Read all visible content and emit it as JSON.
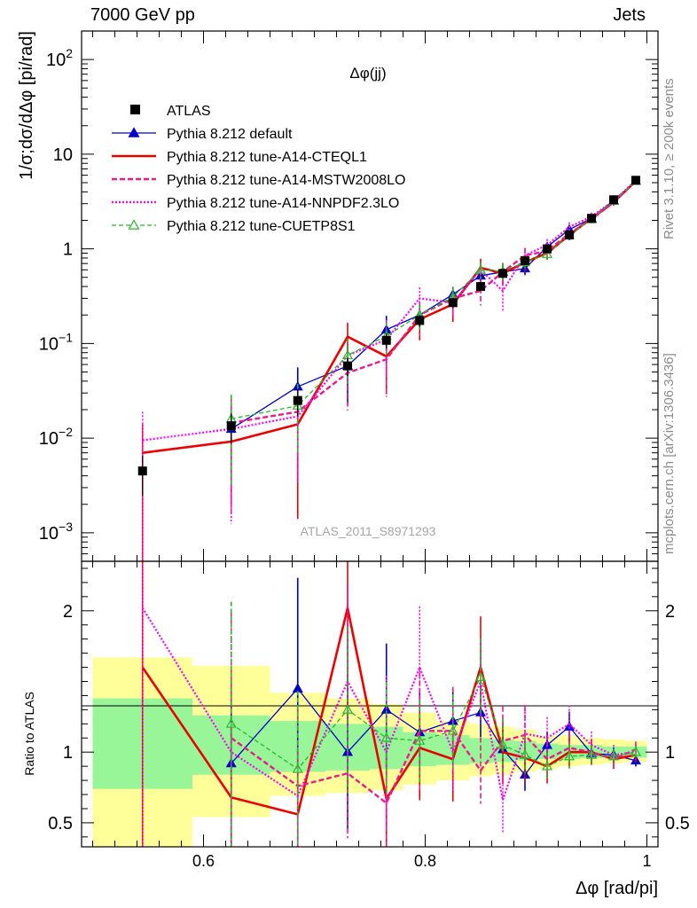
{
  "header": {
    "left": "7000 GeV pp",
    "right": "Jets"
  },
  "side_text": {
    "top": "Rivet 3.1.10, ≥ 200k events",
    "bottom": "mcplots.cern.ch [arXiv:1306.3436]"
  },
  "chart_data": {
    "type": "line",
    "title": "Δφ(jj)",
    "analysis_label": "ATLAS_2011_S8971293",
    "xlabel": "Δφ [rad/pi]",
    "ylabel": "1/σ;dσ/dΔφ [pi/rad]",
    "ratio_ylabel": "Ratio to ATLAS",
    "xlim": [
      0.49,
      1.01
    ],
    "ylim": [
      0.0005,
      200
    ],
    "ratio_ylim": [
      0.33,
      2.35
    ],
    "yscale": "log",
    "x_ticks": [
      {
        "value": 0.6,
        "label": "0.6"
      },
      {
        "value": 0.8,
        "label": "0.8"
      },
      {
        "value": 1.0,
        "label": "1"
      }
    ],
    "y_ticks": [
      {
        "value": 0.001,
        "mant": "10",
        "exp": "−3"
      },
      {
        "value": 0.01,
        "mant": "10",
        "exp": "−2"
      },
      {
        "value": 0.1,
        "mant": "10",
        "exp": "−1"
      },
      {
        "value": 1,
        "mant": "1",
        "exp": ""
      },
      {
        "value": 10,
        "mant": "10",
        "exp": ""
      },
      {
        "value": 100,
        "mant": "10",
        "exp": "2"
      }
    ],
    "ratio_ticks": [
      {
        "value": 0.5,
        "label": "0.5"
      },
      {
        "value": 1,
        "label": "1"
      },
      {
        "value": 2,
        "label": "2"
      }
    ],
    "data": {
      "name": "ATLAS",
      "x": [
        0.545,
        0.625,
        0.685,
        0.73,
        0.765,
        0.795,
        0.825,
        0.85,
        0.87,
        0.89,
        0.91,
        0.93,
        0.95,
        0.97,
        0.99
      ],
      "y": [
        0.0045,
        0.0135,
        0.025,
        0.058,
        0.108,
        0.175,
        0.27,
        0.4,
        0.55,
        0.75,
        1.0,
        1.4,
        2.1,
        3.3,
        5.3
      ],
      "err": [
        0.45,
        0.35,
        0.32,
        0.22,
        0.18,
        0.14,
        0.12,
        0.1,
        0.09,
        0.08,
        0.07,
        0.06,
        0.05,
        0.05,
        0.04
      ]
    },
    "ratio_band": {
      "edges": [
        0.5,
        0.59,
        0.66,
        0.71,
        0.75,
        0.78,
        0.81,
        0.84,
        0.86,
        0.88,
        0.9,
        0.92,
        0.94,
        0.96,
        0.98,
        1.0
      ],
      "inner": [
        [
          0.74,
          1.38
        ],
        [
          0.84,
          1.26
        ],
        [
          0.86,
          1.22
        ],
        [
          0.87,
          1.2
        ],
        [
          0.88,
          1.18
        ],
        [
          0.9,
          1.14
        ],
        [
          0.91,
          1.12
        ],
        [
          0.92,
          1.1
        ],
        [
          0.93,
          1.09
        ],
        [
          0.94,
          1.08
        ],
        [
          0.95,
          1.06
        ],
        [
          0.95,
          1.05
        ],
        [
          0.96,
          1.05
        ],
        [
          0.96,
          1.04
        ],
        [
          0.96,
          1.04
        ]
      ],
      "outer": [
        [
          0.33,
          1.67
        ],
        [
          0.54,
          1.61
        ],
        [
          0.69,
          1.42
        ],
        [
          0.71,
          1.38
        ],
        [
          0.73,
          1.34
        ],
        [
          0.77,
          1.28
        ],
        [
          0.8,
          1.22
        ],
        [
          0.83,
          1.2
        ],
        [
          0.84,
          1.18
        ],
        [
          0.86,
          1.16
        ],
        [
          0.88,
          1.12
        ],
        [
          0.9,
          1.12
        ],
        [
          0.91,
          1.1
        ],
        [
          0.92,
          1.09
        ],
        [
          0.93,
          1.08
        ]
      ],
      "inner_color": "#98f598",
      "outer_color": "#ffff99"
    },
    "series": [
      {
        "name": "Pythia 8.212 default",
        "color": "#0000cc",
        "dash": "solid",
        "width": 1.3,
        "marker": "triangle-filled",
        "x": [
          0.625,
          0.685,
          0.73,
          0.765,
          0.795,
          0.825,
          0.85,
          0.87,
          0.89,
          0.91,
          0.93,
          0.95,
          0.97,
          0.99
        ],
        "y": [
          0.0125,
          0.035,
          0.058,
          0.14,
          0.2,
          0.33,
          0.52,
          0.57,
          0.62,
          1.05,
          1.6,
          2.1,
          3.25,
          5.2
        ],
        "err": [
          0.7,
          0.6,
          0.6,
          0.4,
          0.3,
          0.2,
          0.15,
          0.15,
          0.15,
          0.1,
          0.1,
          0.08,
          0.06,
          0.05
        ],
        "ratio": [
          0.92,
          1.45,
          1.0,
          1.3,
          1.14,
          1.22,
          1.28,
          1.02,
          0.84,
          1.05,
          1.18,
          0.99,
          0.98,
          0.94
        ]
      },
      {
        "name": "Pythia 8.212 tune-A14-CTEQL1",
        "color": "#ee0000",
        "dash": "solid",
        "width": 2.6,
        "marker": "none",
        "x": [
          0.545,
          0.625,
          0.685,
          0.73,
          0.765,
          0.795,
          0.825,
          0.85,
          0.87,
          0.89,
          0.91,
          0.93,
          0.95,
          0.97,
          0.99
        ],
        "y": [
          0.007,
          0.0092,
          0.014,
          0.118,
          0.073,
          0.18,
          0.26,
          0.63,
          0.55,
          0.72,
          0.9,
          1.4,
          2.1,
          3.1,
          5.2
        ],
        "err": [
          1.0,
          0.8,
          0.9,
          0.4,
          0.6,
          0.4,
          0.35,
          0.25,
          0.25,
          0.2,
          0.15,
          0.12,
          0.1,
          0.08,
          0.06
        ],
        "ratio": [
          1.6,
          0.68,
          0.56,
          2.02,
          0.67,
          1.03,
          0.95,
          1.6,
          1.0,
          0.96,
          0.9,
          1.0,
          1.0,
          0.95,
          0.98
        ]
      },
      {
        "name": "Pythia 8.212 tune-A14-MSTW2008LO",
        "color": "#ee1a8c",
        "dash": "6,3",
        "width": 2.4,
        "marker": "none",
        "x": [
          0.625,
          0.685,
          0.73,
          0.765,
          0.795,
          0.825,
          0.85,
          0.87,
          0.89,
          0.91,
          0.93,
          0.95,
          0.97,
          0.99
        ],
        "y": [
          0.0145,
          0.019,
          0.049,
          0.068,
          0.2,
          0.3,
          0.36,
          0.57,
          0.85,
          0.95,
          1.45,
          2.05,
          3.1,
          5.2
        ],
        "err": [
          0.9,
          0.8,
          0.6,
          0.6,
          0.4,
          0.3,
          0.3,
          0.25,
          0.2,
          0.15,
          0.12,
          0.1,
          0.08,
          0.06
        ],
        "ratio": [
          1.1,
          0.76,
          0.85,
          0.64,
          1.15,
          1.15,
          0.87,
          1.08,
          1.12,
          0.95,
          1.03,
          1.0,
          0.95,
          1.02
        ]
      },
      {
        "name": "Pythia 8.212 tune-A14-NNPDF2.3LO",
        "color": "#ff00ff",
        "dash": "2,2",
        "width": 2.2,
        "marker": "none",
        "x": [
          0.545,
          0.625,
          0.685,
          0.73,
          0.765,
          0.795,
          0.825,
          0.85,
          0.87,
          0.89,
          0.91,
          0.93,
          0.95,
          0.97,
          0.99
        ],
        "y": [
          0.0095,
          0.0125,
          0.017,
          0.075,
          0.11,
          0.3,
          0.27,
          0.6,
          0.36,
          0.85,
          1.1,
          1.7,
          2.2,
          3.2,
          5.3
        ],
        "err": [
          1.0,
          0.9,
          0.8,
          0.5,
          0.6,
          0.3,
          0.3,
          0.2,
          0.4,
          0.2,
          0.15,
          0.12,
          0.1,
          0.08,
          0.06
        ],
        "ratio": [
          2.02,
          1.0,
          0.69,
          1.5,
          1.0,
          1.6,
          1.0,
          1.5,
          0.66,
          1.13,
          1.1,
          1.2,
          1.05,
          0.98,
          1.0
        ]
      },
      {
        "name": "Pythia 8.212 tune-CUETP8S1",
        "color": "#22bb22",
        "dash": "5,3",
        "width": 1.3,
        "marker": "triangle-open",
        "x": [
          0.625,
          0.685,
          0.73,
          0.765,
          0.795,
          0.825,
          0.85,
          0.87,
          0.89,
          0.91,
          0.93,
          0.95,
          0.97,
          0.99
        ],
        "y": [
          0.016,
          0.022,
          0.075,
          0.12,
          0.2,
          0.31,
          0.6,
          0.58,
          0.72,
          0.88,
          1.4,
          2.05,
          3.2,
          5.2
        ],
        "err": [
          0.8,
          0.7,
          0.5,
          0.4,
          0.3,
          0.25,
          0.2,
          0.2,
          0.15,
          0.12,
          0.1,
          0.08,
          0.06,
          0.05
        ],
        "ratio": [
          1.2,
          0.88,
          1.3,
          1.1,
          1.08,
          1.15,
          1.53,
          1.05,
          0.98,
          0.9,
          0.97,
          0.98,
          0.97,
          1.0
        ]
      }
    ]
  }
}
